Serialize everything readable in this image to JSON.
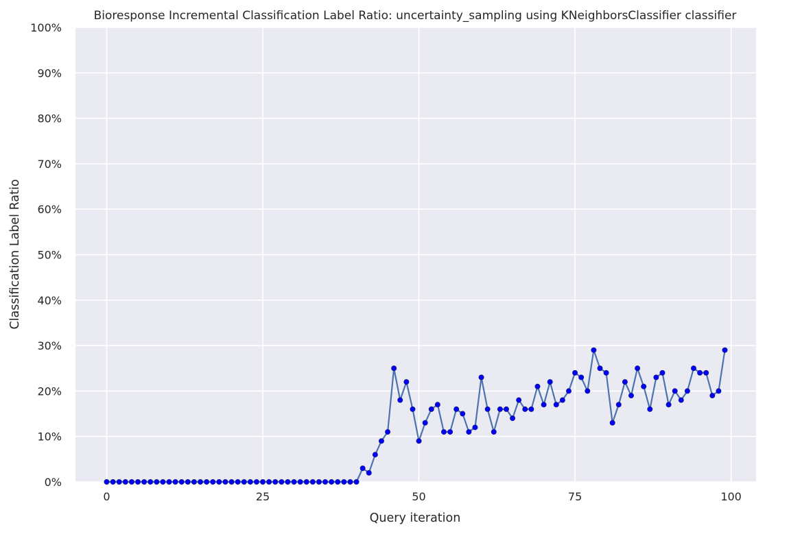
{
  "chart_data": {
    "type": "line",
    "title": "Bioresponse Incremental Classification Label Ratio: uncertainty_sampling using KNeighborsClassifier classifier",
    "xlabel": "Query iteration",
    "ylabel": "Classification Label Ratio",
    "xlim": [
      -5,
      104
    ],
    "ylim": [
      0,
      100
    ],
    "xticks": [
      0,
      25,
      50,
      75,
      100
    ],
    "yticks": [
      0,
      10,
      20,
      30,
      40,
      50,
      60,
      70,
      80,
      90,
      100
    ],
    "ytick_labels": [
      "0%",
      "10%",
      "20%",
      "30%",
      "40%",
      "50%",
      "60%",
      "70%",
      "80%",
      "90%",
      "100%"
    ],
    "grid": true,
    "line_color": "#4c72b0",
    "marker_color": "#0000ff",
    "background_color": "#eaeaf2",
    "x": [
      0,
      1,
      2,
      3,
      4,
      5,
      6,
      7,
      8,
      9,
      10,
      11,
      12,
      13,
      14,
      15,
      16,
      17,
      18,
      19,
      20,
      21,
      22,
      23,
      24,
      25,
      26,
      27,
      28,
      29,
      30,
      31,
      32,
      33,
      34,
      35,
      36,
      37,
      38,
      39,
      40,
      41,
      42,
      43,
      44,
      45,
      46,
      47,
      48,
      49,
      50,
      51,
      52,
      53,
      54,
      55,
      56,
      57,
      58,
      59,
      60,
      61,
      62,
      63,
      64,
      65,
      66,
      67,
      68,
      69,
      70,
      71,
      72,
      73,
      74,
      75,
      76,
      77,
      78,
      79,
      80,
      81,
      82,
      83,
      84,
      85,
      86,
      87,
      88,
      89,
      90,
      91,
      92,
      93,
      94,
      95,
      96,
      97,
      98,
      99
    ],
    "values": [
      0,
      0,
      0,
      0,
      0,
      0,
      0,
      0,
      0,
      0,
      0,
      0,
      0,
      0,
      0,
      0,
      0,
      0,
      0,
      0,
      0,
      0,
      0,
      0,
      0,
      0,
      0,
      0,
      0,
      0,
      0,
      0,
      0,
      0,
      0,
      0,
      0,
      0,
      0,
      0,
      0,
      3,
      2,
      6,
      9,
      11,
      25,
      18,
      22,
      16,
      9,
      13,
      16,
      17,
      11,
      11,
      16,
      15,
      11,
      12,
      23,
      16,
      11,
      16,
      16,
      14,
      18,
      16,
      16,
      21,
      17,
      22,
      17,
      18,
      20,
      24,
      23,
      20,
      29,
      25,
      24,
      13,
      17,
      22,
      19,
      25,
      21,
      16,
      23,
      24,
      17,
      20,
      18,
      20,
      25,
      24,
      24,
      19,
      20,
      29
    ]
  }
}
